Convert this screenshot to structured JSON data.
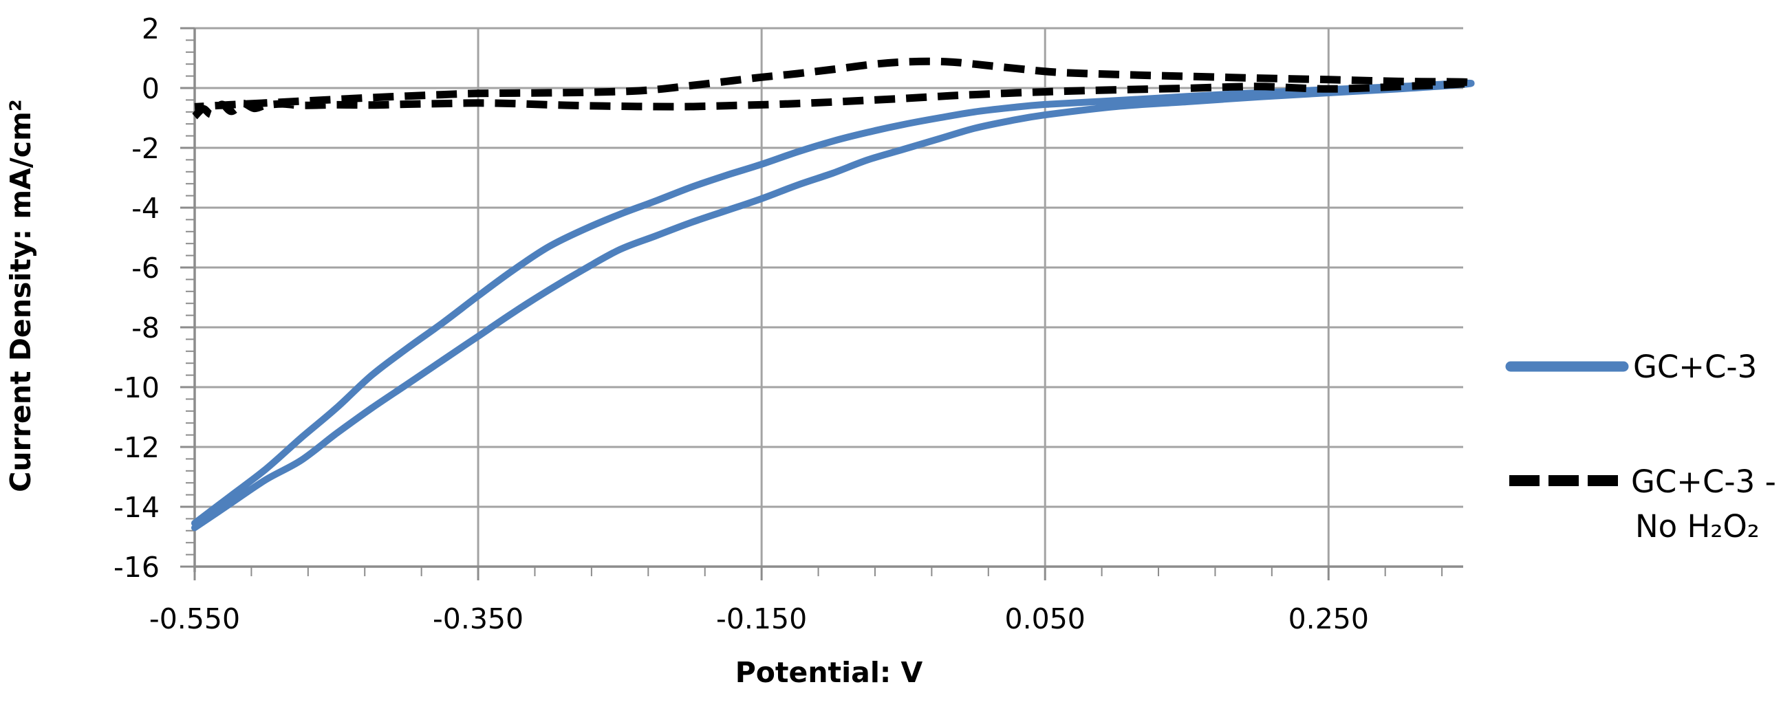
{
  "chart_data": {
    "type": "line",
    "title": "",
    "xlabel": "Potential: V",
    "ylabel": "Current Density: mA/cm²",
    "xlim": [
      -0.55,
      0.345
    ],
    "ylim": [
      -16,
      2
    ],
    "grid": true,
    "legend_position": "right-outside",
    "x_major_ticks": [
      -0.55,
      -0.35,
      -0.15,
      0.05,
      0.25
    ],
    "x_tick_labels": [
      "-0.550",
      "-0.350",
      "-0.150",
      "0.050",
      "0.250"
    ],
    "x_minor_step": 0.04,
    "y_major_ticks": [
      2,
      0,
      -2,
      -4,
      -6,
      -8,
      -10,
      -12,
      -14,
      -16
    ],
    "y_tick_labels": [
      "2",
      "0",
      "-2",
      "-4",
      "-6",
      "-8",
      "-10",
      "-12",
      "-14",
      "-16"
    ],
    "y_minor_step": 0.4,
    "series": [
      {
        "name": "GC+C-3",
        "color": "#4e80bd",
        "style": "solid",
        "stroke_width": 10,
        "points": [
          [
            -0.55,
            -14.7
          ],
          [
            -0.525,
            -13.9
          ],
          [
            -0.5,
            -13.1
          ],
          [
            -0.475,
            -12.45
          ],
          [
            -0.45,
            -11.55
          ],
          [
            -0.425,
            -10.7
          ],
          [
            -0.4,
            -9.9
          ],
          [
            -0.375,
            -9.1
          ],
          [
            -0.35,
            -8.3
          ],
          [
            -0.325,
            -7.5
          ],
          [
            -0.3,
            -6.75
          ],
          [
            -0.275,
            -6.05
          ],
          [
            -0.25,
            -5.4
          ],
          [
            -0.225,
            -4.95
          ],
          [
            -0.2,
            -4.5
          ],
          [
            -0.175,
            -4.1
          ],
          [
            -0.15,
            -3.7
          ],
          [
            -0.125,
            -3.25
          ],
          [
            -0.1,
            -2.85
          ],
          [
            -0.075,
            -2.4
          ],
          [
            -0.05,
            -2.05
          ],
          [
            -0.025,
            -1.7
          ],
          [
            0.0,
            -1.35
          ],
          [
            0.025,
            -1.1
          ],
          [
            0.05,
            -0.9
          ],
          [
            0.1,
            -0.62
          ],
          [
            0.15,
            -0.46
          ],
          [
            0.2,
            -0.3
          ],
          [
            0.25,
            -0.16
          ],
          [
            0.3,
            -0.03
          ],
          [
            0.345,
            0.12
          ],
          [
            0.345,
            0.16
          ],
          [
            0.3,
            0.05
          ],
          [
            0.25,
            -0.05
          ],
          [
            0.2,
            -0.16
          ],
          [
            0.15,
            -0.28
          ],
          [
            0.1,
            -0.42
          ],
          [
            0.05,
            -0.55
          ],
          [
            0.025,
            -0.66
          ],
          [
            0.0,
            -0.8
          ],
          [
            -0.025,
            -1.0
          ],
          [
            -0.05,
            -1.22
          ],
          [
            -0.075,
            -1.48
          ],
          [
            -0.1,
            -1.78
          ],
          [
            -0.125,
            -2.14
          ],
          [
            -0.15,
            -2.55
          ],
          [
            -0.175,
            -2.92
          ],
          [
            -0.2,
            -3.32
          ],
          [
            -0.225,
            -3.78
          ],
          [
            -0.25,
            -4.22
          ],
          [
            -0.275,
            -4.72
          ],
          [
            -0.3,
            -5.3
          ],
          [
            -0.325,
            -6.08
          ],
          [
            -0.35,
            -6.95
          ],
          [
            -0.375,
            -7.85
          ],
          [
            -0.4,
            -8.7
          ],
          [
            -0.425,
            -9.6
          ],
          [
            -0.45,
            -10.7
          ],
          [
            -0.475,
            -11.7
          ],
          [
            -0.5,
            -12.75
          ],
          [
            -0.525,
            -13.65
          ],
          [
            -0.55,
            -14.55
          ]
        ]
      },
      {
        "name": "GC+C-3 - No H₂O₂",
        "color": "#000000",
        "style": "dashed",
        "stroke_width": 11,
        "dash_pattern": "30 16",
        "points": [
          [
            -0.55,
            -0.95
          ],
          [
            -0.544,
            -0.7
          ],
          [
            -0.538,
            -0.88
          ],
          [
            -0.531,
            -0.55
          ],
          [
            -0.524,
            -0.78
          ],
          [
            -0.516,
            -0.52
          ],
          [
            -0.508,
            -0.68
          ],
          [
            -0.5,
            -0.58
          ],
          [
            -0.488,
            -0.53
          ],
          [
            -0.475,
            -0.58
          ],
          [
            -0.45,
            -0.56
          ],
          [
            -0.425,
            -0.57
          ],
          [
            -0.4,
            -0.54
          ],
          [
            -0.375,
            -0.52
          ],
          [
            -0.35,
            -0.5
          ],
          [
            -0.325,
            -0.52
          ],
          [
            -0.3,
            -0.56
          ],
          [
            -0.275,
            -0.59
          ],
          [
            -0.25,
            -0.61
          ],
          [
            -0.225,
            -0.62
          ],
          [
            -0.2,
            -0.62
          ],
          [
            -0.175,
            -0.59
          ],
          [
            -0.15,
            -0.56
          ],
          [
            -0.125,
            -0.52
          ],
          [
            -0.1,
            -0.47
          ],
          [
            -0.075,
            -0.41
          ],
          [
            -0.05,
            -0.35
          ],
          [
            -0.025,
            -0.28
          ],
          [
            0.0,
            -0.22
          ],
          [
            0.03,
            -0.16
          ],
          [
            0.061,
            -0.11
          ],
          [
            0.1,
            -0.06
          ],
          [
            0.15,
            -0.01
          ],
          [
            0.2,
            0.05
          ],
          [
            0.25,
            -0.03
          ],
          [
            0.3,
            0.05
          ],
          [
            0.345,
            0.14
          ],
          [
            0.345,
            0.2
          ],
          [
            0.3,
            0.22
          ],
          [
            0.25,
            0.28
          ],
          [
            0.2,
            0.33
          ],
          [
            0.16,
            0.38
          ],
          [
            0.11,
            0.44
          ],
          [
            0.061,
            0.52
          ],
          [
            0.03,
            0.65
          ],
          [
            0.0,
            0.8
          ],
          [
            -0.02,
            0.88
          ],
          [
            -0.045,
            0.88
          ],
          [
            -0.07,
            0.8
          ],
          [
            -0.1,
            0.62
          ],
          [
            -0.125,
            0.48
          ],
          [
            -0.15,
            0.36
          ],
          [
            -0.175,
            0.22
          ],
          [
            -0.2,
            0.08
          ],
          [
            -0.22,
            -0.03
          ],
          [
            -0.24,
            -0.1
          ],
          [
            -0.27,
            -0.14
          ],
          [
            -0.3,
            -0.16
          ],
          [
            -0.35,
            -0.18
          ],
          [
            -0.375,
            -0.22
          ],
          [
            -0.4,
            -0.27
          ],
          [
            -0.425,
            -0.32
          ],
          [
            -0.45,
            -0.38
          ],
          [
            -0.475,
            -0.44
          ],
          [
            -0.5,
            -0.5
          ],
          [
            -0.525,
            -0.56
          ],
          [
            -0.55,
            -0.63
          ]
        ]
      }
    ]
  },
  "legend": {
    "items": [
      {
        "lines": [
          "GC+C-3"
        ]
      },
      {
        "lines": [
          "GC+C-3 -",
          "No H₂O₂"
        ]
      }
    ]
  },
  "axis_titles": {
    "x": "Potential: V",
    "y": "Current Density: mA/cm²"
  }
}
